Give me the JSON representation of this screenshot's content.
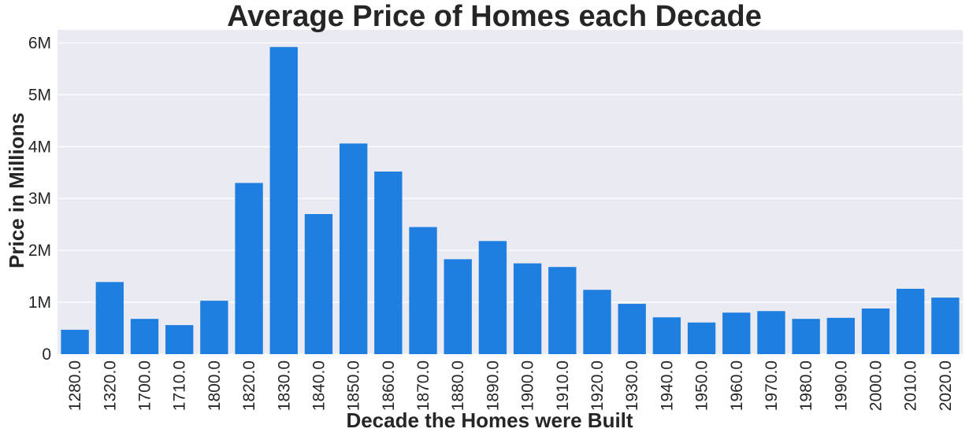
{
  "chart_data": {
    "type": "bar",
    "title": "Average Price of Homes each Decade",
    "xlabel": "Decade the Homes were Built",
    "ylabel": "Price in Millions",
    "categories": [
      "1280.0",
      "1320.0",
      "1700.0",
      "1710.0",
      "1800.0",
      "1820.0",
      "1830.0",
      "1840.0",
      "1850.0",
      "1860.0",
      "1870.0",
      "1880.0",
      "1890.0",
      "1900.0",
      "1910.0",
      "1920.0",
      "1930.0",
      "1940.0",
      "1950.0",
      "1960.0",
      "1970.0",
      "1980.0",
      "1990.0",
      "2000.0",
      "2010.0",
      "2020.0"
    ],
    "values": [
      470000,
      1390000,
      680000,
      560000,
      1030000,
      3300000,
      5920000,
      2700000,
      4060000,
      3520000,
      2450000,
      1830000,
      2180000,
      1750000,
      1680000,
      1240000,
      970000,
      710000,
      610000,
      800000,
      830000,
      680000,
      700000,
      880000,
      1260000,
      1090000
    ],
    "ylim": [
      0,
      6250000
    ],
    "yticks": [
      0,
      1000000,
      2000000,
      3000000,
      4000000,
      5000000,
      6000000
    ],
    "ytick_labels": [
      "0",
      "1M",
      "2M",
      "3M",
      "4M",
      "5M",
      "6M"
    ],
    "grid": true,
    "colors": {
      "bar": "#1f7fe0",
      "plot_background": "#eaeaf2",
      "grid": "#ffffff"
    }
  }
}
